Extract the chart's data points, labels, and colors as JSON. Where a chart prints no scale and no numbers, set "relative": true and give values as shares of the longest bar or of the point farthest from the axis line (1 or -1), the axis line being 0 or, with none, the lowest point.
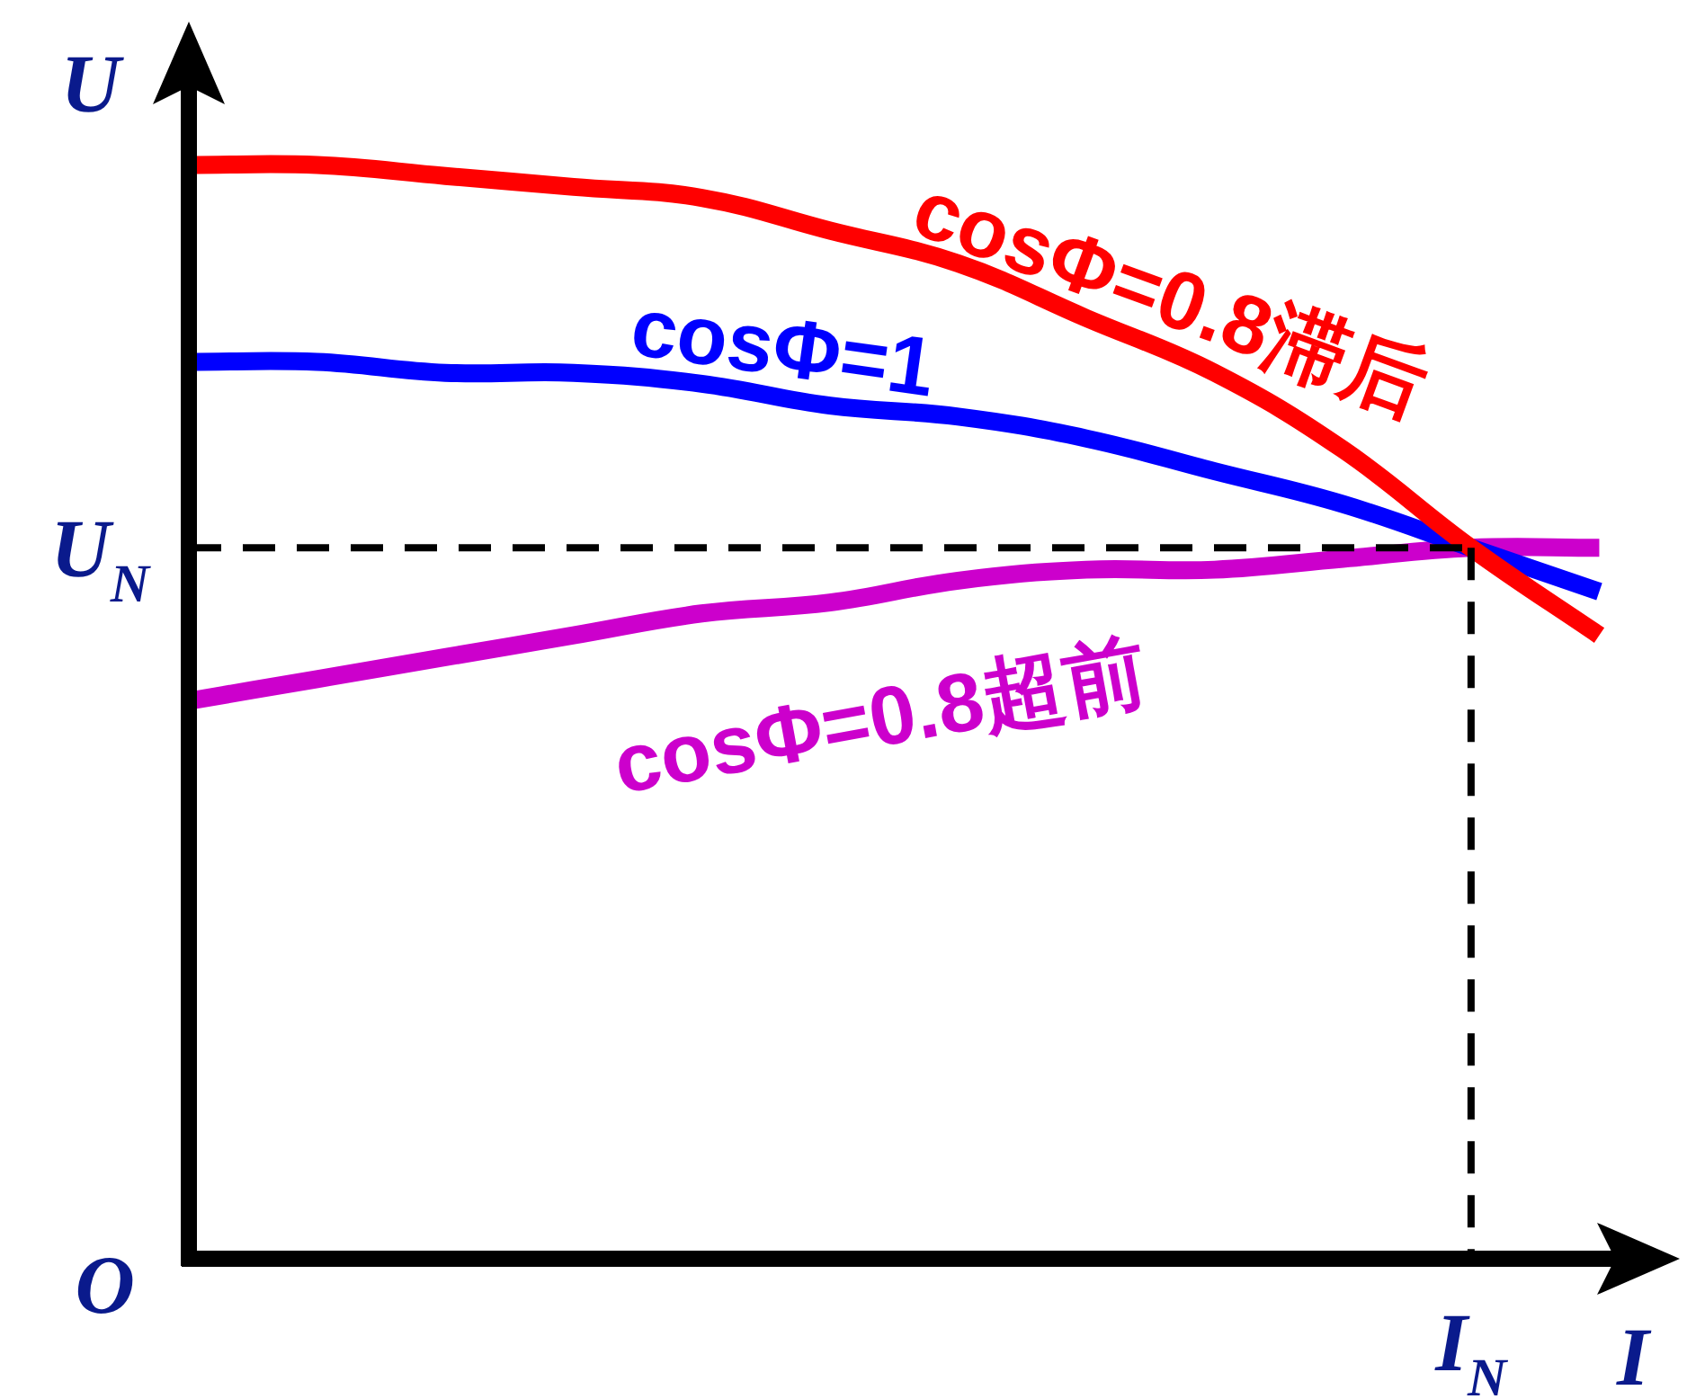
{
  "chart_data": {
    "type": "line",
    "relative": true,
    "xlabel": "I",
    "ylabel": "U",
    "annotations": [
      "O"
    ],
    "categories": [
      null,
      null,
      null,
      null,
      null,
      null,
      null,
      null,
      null,
      null,
      null,
      null
    ],
    "series": [
      {
        "name": "cosΦ=0.8滞后",
        "color": "#ff0000",
        "values": [
          1,
          1,
          0.99,
          0.98,
          0.97,
          0.94,
          0.91,
          0.86,
          0.81,
          0.74,
          0.65,
          0.57
        ]
      },
      {
        "name": "cosΦ=1",
        "color": "#0000ff",
        "values": [
          0.82,
          0.82,
          0.81,
          0.81,
          0.8,
          0.78,
          0.77,
          0.75,
          0.72,
          0.69,
          0.65,
          0.61
        ]
      },
      {
        "name": "cosΦ=0.8超前",
        "color": "#cc00cc",
        "values": [
          0.51,
          0.53,
          0.55,
          0.57,
          0.59,
          0.6,
          0.62,
          0.63,
          0.63,
          0.64,
          0.65,
          0.65
        ]
      }
    ],
    "ref_lines": [
      {
        "axis": "y",
        "value": 0.65,
        "label": "U$_{N}$",
        "line_style": "dashed",
        "color": "#000000"
      },
      {
        "axis": "x",
        "label": "I$_{N}$",
        "line_style": "dashed",
        "color": "#000000"
      }
    ],
    "grid": false,
    "legend": false,
    "marker": "none",
    "line_style": "solid"
  }
}
